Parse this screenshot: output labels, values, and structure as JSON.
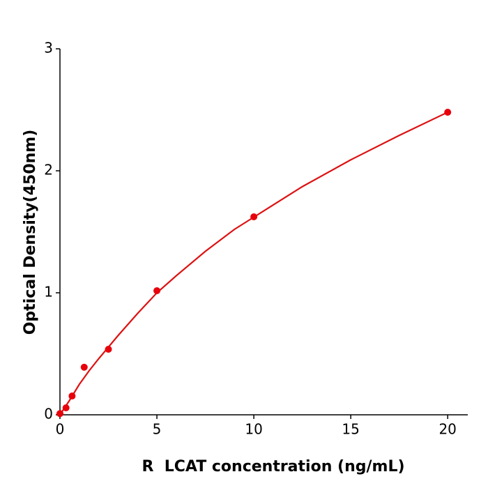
{
  "chart_data": {
    "type": "scatter",
    "xlabel": "R  LCAT concentration (ng/mL)",
    "ylabel": "Optical Density(450nm)",
    "x": [
      0,
      0.3125,
      0.625,
      1.25,
      2.5,
      5,
      10,
      20
    ],
    "values": [
      0.01,
      0.057,
      0.154,
      0.39,
      0.537,
      1.017,
      1.623,
      2.48
    ],
    "color": "#e8000b",
    "curve": {
      "color": "#dd1111",
      "x": [
        0,
        0.5,
        1,
        1.5,
        2,
        3,
        4,
        5,
        6,
        7.5,
        9,
        10,
        12.5,
        15,
        17.5,
        20
      ],
      "values": [
        0,
        0.12,
        0.25,
        0.36,
        0.46,
        0.65,
        0.83,
        1.0,
        1.14,
        1.34,
        1.52,
        1.62,
        1.87,
        2.09,
        2.29,
        2.48
      ]
    },
    "xlim": [
      0,
      21
    ],
    "xticks": [
      0,
      5,
      10,
      15,
      20
    ],
    "ylim": [
      0,
      3
    ],
    "yticks": [
      0,
      1,
      2,
      3
    ]
  }
}
